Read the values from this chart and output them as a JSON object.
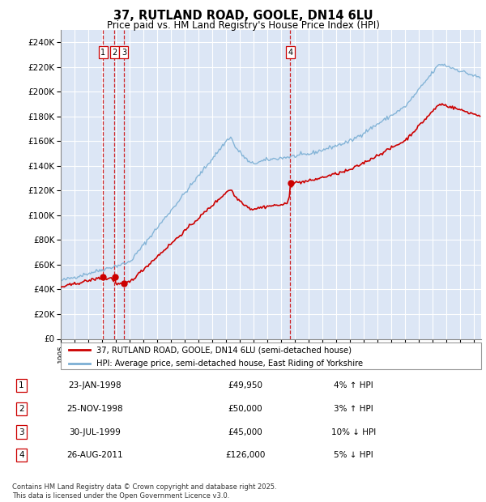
{
  "title": "37, RUTLAND ROAD, GOOLE, DN14 6LU",
  "subtitle": "Price paid vs. HM Land Registry's House Price Index (HPI)",
  "ylim": [
    0,
    250000
  ],
  "yticks": [
    0,
    20000,
    40000,
    60000,
    80000,
    100000,
    120000,
    140000,
    160000,
    180000,
    200000,
    220000,
    240000
  ],
  "xlim_start": 1995.0,
  "xlim_end": 2025.5,
  "sale_color": "#cc0000",
  "hpi_color": "#7bafd4",
  "bg_color": "#dce6f5",
  "grid_color": "#ffffff",
  "transactions": [
    {
      "num": 1,
      "date_dec": 1998.06,
      "price": 49950,
      "label": "1"
    },
    {
      "num": 2,
      "date_dec": 1998.9,
      "price": 50000,
      "label": "2"
    },
    {
      "num": 3,
      "date_dec": 1999.58,
      "price": 45000,
      "label": "3"
    },
    {
      "num": 4,
      "date_dec": 2011.65,
      "price": 126000,
      "label": "4"
    }
  ],
  "legend_sale_label": "37, RUTLAND ROAD, GOOLE, DN14 6LU (semi-detached house)",
  "legend_hpi_label": "HPI: Average price, semi-detached house, East Riding of Yorkshire",
  "table_rows": [
    {
      "num": "1",
      "date": "23-JAN-1998",
      "price": "£49,950",
      "note": "4% ↑ HPI"
    },
    {
      "num": "2",
      "date": "25-NOV-1998",
      "price": "£50,000",
      "note": "3% ↑ HPI"
    },
    {
      "num": "3",
      "date": "30-JUL-1999",
      "price": "£45,000",
      "note": "10% ↓ HPI"
    },
    {
      "num": "4",
      "date": "26-AUG-2011",
      "price": "£126,000",
      "note": "5% ↓ HPI"
    }
  ],
  "footer": "Contains HM Land Registry data © Crown copyright and database right 2025.\nThis data is licensed under the Open Government Licence v3.0."
}
